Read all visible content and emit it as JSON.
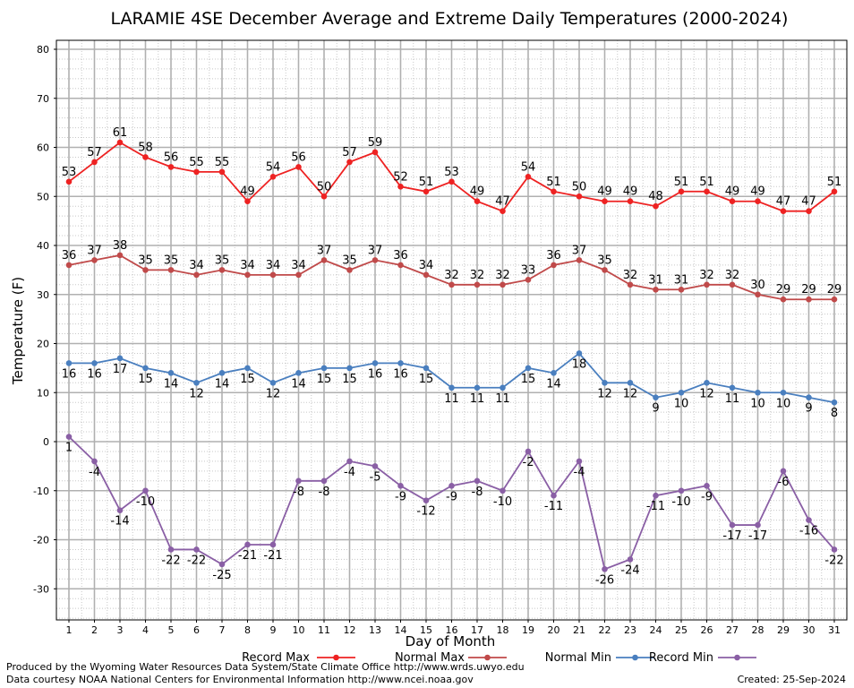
{
  "chart_data": {
    "type": "line",
    "title": "LARAMIE 4SE December Average and Extreme Daily Temperatures (2000-2024)",
    "xlabel": "Day of Month",
    "ylabel": "Temperature (F)",
    "ylim": [
      -37,
      81
    ],
    "yticks": [
      -30,
      -20,
      -10,
      0,
      10,
      20,
      30,
      40,
      50,
      60,
      70,
      80
    ],
    "x": [
      1,
      2,
      3,
      4,
      5,
      6,
      7,
      8,
      9,
      10,
      11,
      12,
      13,
      14,
      15,
      16,
      17,
      18,
      19,
      20,
      21,
      22,
      23,
      24,
      25,
      26,
      27,
      28,
      29,
      30,
      31
    ],
    "grid": true,
    "legend_position": "bottom",
    "series": [
      {
        "name": "Record Max",
        "color": "#ee2222",
        "label_position": "above",
        "values": [
          53,
          57,
          61,
          58,
          56,
          55,
          55,
          49,
          54,
          56,
          50,
          57,
          59,
          52,
          51,
          53,
          49,
          47,
          54,
          51,
          50,
          49,
          49,
          48,
          51,
          51,
          49,
          49,
          47,
          47,
          51
        ]
      },
      {
        "name": "Normal Max",
        "color": "#c04a4a",
        "label_position": "above",
        "values": [
          36,
          37,
          38,
          35,
          35,
          34,
          35,
          34,
          34,
          34,
          37,
          35,
          37,
          36,
          34,
          32,
          32,
          32,
          33,
          36,
          37,
          35,
          32,
          31,
          31,
          32,
          32,
          30,
          29,
          29,
          29
        ]
      },
      {
        "name": "Normal Min",
        "color": "#4a7fbf",
        "label_position": "below",
        "values": [
          16,
          16,
          17,
          15,
          14,
          12,
          14,
          15,
          12,
          14,
          15,
          15,
          16,
          16,
          15,
          11,
          11,
          11,
          15,
          14,
          18,
          12,
          12,
          9,
          10,
          12,
          11,
          10,
          10,
          9,
          8
        ]
      },
      {
        "name": "Record Min",
        "color": "#8a5fa5",
        "label_position": "below",
        "values": [
          1,
          -4,
          -14,
          -10,
          -22,
          -22,
          -25,
          -21,
          -21,
          -8,
          -8,
          -4,
          -5,
          -9,
          -12,
          -9,
          -8,
          -10,
          -2,
          -11,
          -4,
          -26,
          -24,
          -11,
          -10,
          -9,
          -17,
          -17,
          -6,
          -16,
          -22
        ]
      }
    ]
  },
  "footer": {
    "line1": "Produced by the Wyoming Water Resources Data System/State Climate Office http://www.wrds.uwyo.edu",
    "line2": "Data courtesy NOAA National Centers for Environmental Information http://www.ncei.noaa.gov",
    "created": "Created:  25-Sep-2024"
  }
}
